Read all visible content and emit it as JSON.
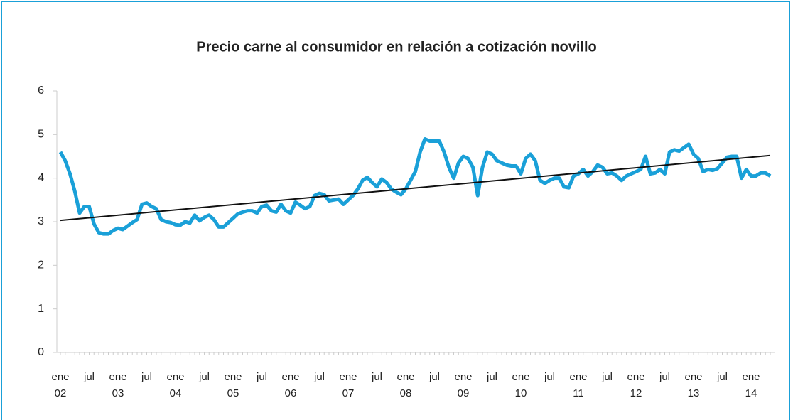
{
  "chart_data": {
    "type": "line",
    "title": "Precio carne al consumidor  en relación a cotización novillo",
    "categories": [
      "ene\n02",
      null,
      null,
      null,
      null,
      null,
      "jul",
      null,
      null,
      null,
      null,
      null,
      "ene\n03",
      null,
      null,
      null,
      null,
      null,
      "jul",
      null,
      null,
      null,
      null,
      null,
      "ene\n04",
      null,
      null,
      null,
      null,
      null,
      "jul",
      null,
      null,
      null,
      null,
      null,
      "ene\n05",
      null,
      null,
      null,
      null,
      null,
      "jul",
      null,
      null,
      null,
      null,
      null,
      "ene\n06",
      null,
      null,
      null,
      null,
      null,
      "jul",
      null,
      null,
      null,
      null,
      null,
      "ene\n07",
      null,
      null,
      null,
      null,
      null,
      "jul",
      null,
      null,
      null,
      null,
      null,
      "ene\n08",
      null,
      null,
      null,
      null,
      null,
      "jul",
      null,
      null,
      null,
      null,
      null,
      "ene\n09",
      null,
      null,
      null,
      null,
      null,
      "jul",
      null,
      null,
      null,
      null,
      null,
      "ene\n10",
      null,
      null,
      null,
      null,
      null,
      "jul",
      null,
      null,
      null,
      null,
      null,
      "ene\n11",
      null,
      null,
      null,
      null,
      null,
      "jul",
      null,
      null,
      null,
      null,
      null,
      "ene\n12",
      null,
      null,
      null,
      null,
      null,
      "jul",
      null,
      null,
      null,
      null,
      null,
      "ene\n13",
      null,
      null,
      null,
      null,
      null,
      "jul",
      null,
      null,
      null,
      null,
      null,
      "ene\n14",
      null,
      null,
      null,
      null
    ],
    "values": [
      4.6,
      4.4,
      4.1,
      3.7,
      3.2,
      3.35,
      3.35,
      2.95,
      2.75,
      2.72,
      2.72,
      2.8,
      2.85,
      2.82,
      2.9,
      2.98,
      3.05,
      3.4,
      3.43,
      3.35,
      3.3,
      3.05,
      3.0,
      2.98,
      2.93,
      2.92,
      3.0,
      2.97,
      3.15,
      3.02,
      3.1,
      3.15,
      3.05,
      2.88,
      2.88,
      2.98,
      3.08,
      3.18,
      3.22,
      3.25,
      3.25,
      3.2,
      3.35,
      3.38,
      3.25,
      3.22,
      3.4,
      3.25,
      3.2,
      3.45,
      3.38,
      3.3,
      3.35,
      3.6,
      3.65,
      3.62,
      3.48,
      3.5,
      3.52,
      3.4,
      3.5,
      3.6,
      3.75,
      3.95,
      4.02,
      3.9,
      3.8,
      3.98,
      3.9,
      3.75,
      3.68,
      3.62,
      3.75,
      3.95,
      4.15,
      4.6,
      4.9,
      4.85,
      4.85,
      4.85,
      4.6,
      4.25,
      4.0,
      4.35,
      4.5,
      4.45,
      4.25,
      3.6,
      4.25,
      4.6,
      4.55,
      4.4,
      4.35,
      4.3,
      4.28,
      4.28,
      4.1,
      4.45,
      4.55,
      4.4,
      3.95,
      3.88,
      3.95,
      4.0,
      4.0,
      3.8,
      3.78,
      4.05,
      4.1,
      4.2,
      4.05,
      4.15,
      4.3,
      4.25,
      4.1,
      4.12,
      4.05,
      3.95,
      4.05,
      4.1,
      4.15,
      4.2,
      4.5,
      4.1,
      4.12,
      4.2,
      4.1,
      4.6,
      4.65,
      4.62,
      4.7,
      4.78,
      4.55,
      4.45,
      4.15,
      4.2,
      4.18,
      4.22,
      4.35,
      4.48,
      4.5,
      4.5,
      4.0,
      4.2,
      4.05,
      4.05,
      4.12,
      4.12,
      4.05
    ],
    "color": "#1aa0d8",
    "trend": {
      "values": [
        3.03,
        4.52
      ],
      "color": "#111111"
    },
    "ylim": [
      0,
      6
    ],
    "yticks": [
      0,
      1,
      2,
      3,
      4,
      5,
      6
    ],
    "grid": false
  }
}
